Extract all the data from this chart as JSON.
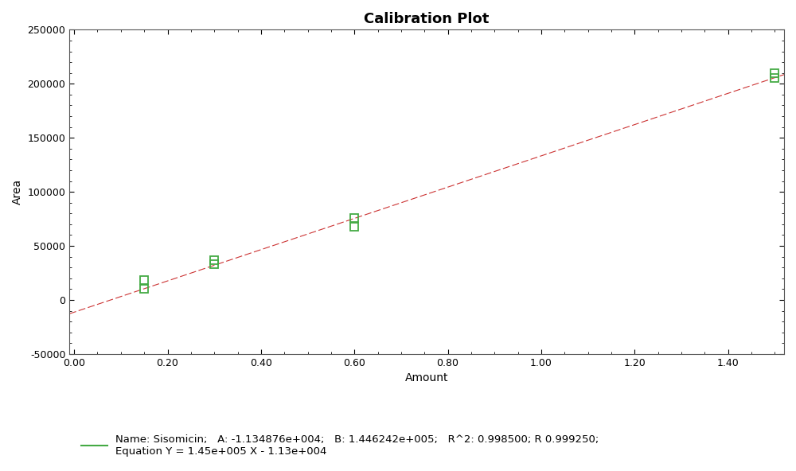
{
  "title": "Calibration Plot",
  "xlabel": "Amount",
  "ylabel": "Area",
  "background_color": "#ffffff",
  "plot_bg_color": "#ffffff",
  "A": -11348.76,
  "B": 144624.2,
  "x_data": [
    0.15,
    0.15,
    0.3,
    0.3,
    0.6,
    0.6,
    1.5,
    1.5
  ],
  "y_data": [
    10000,
    18000,
    33000,
    37000,
    68000,
    76000,
    205000,
    210000
  ],
  "x_line_start": -0.03,
  "x_line_end": 1.53,
  "xlim": [
    -0.01,
    1.52
  ],
  "ylim": [
    -50000,
    250000
  ],
  "xticks": [
    0.0,
    0.2,
    0.4,
    0.6,
    0.8,
    1.0,
    1.2,
    1.4
  ],
  "yticks": [
    -50000,
    0,
    50000,
    100000,
    150000,
    200000,
    250000
  ],
  "line_color": "#cc3333",
  "marker_color": "#44aa44",
  "legend_text_line1": "Name: Sisomicin;   A: -1.134876e+004;   B: 1.446242e+005;   R^2: 0.998500; R 0.999250;",
  "legend_text_line2": "Equation Y = 1.45e+005 X - 1.13e+004",
  "title_fontsize": 13,
  "axis_label_fontsize": 10,
  "tick_fontsize": 9,
  "legend_fontsize": 9.5
}
